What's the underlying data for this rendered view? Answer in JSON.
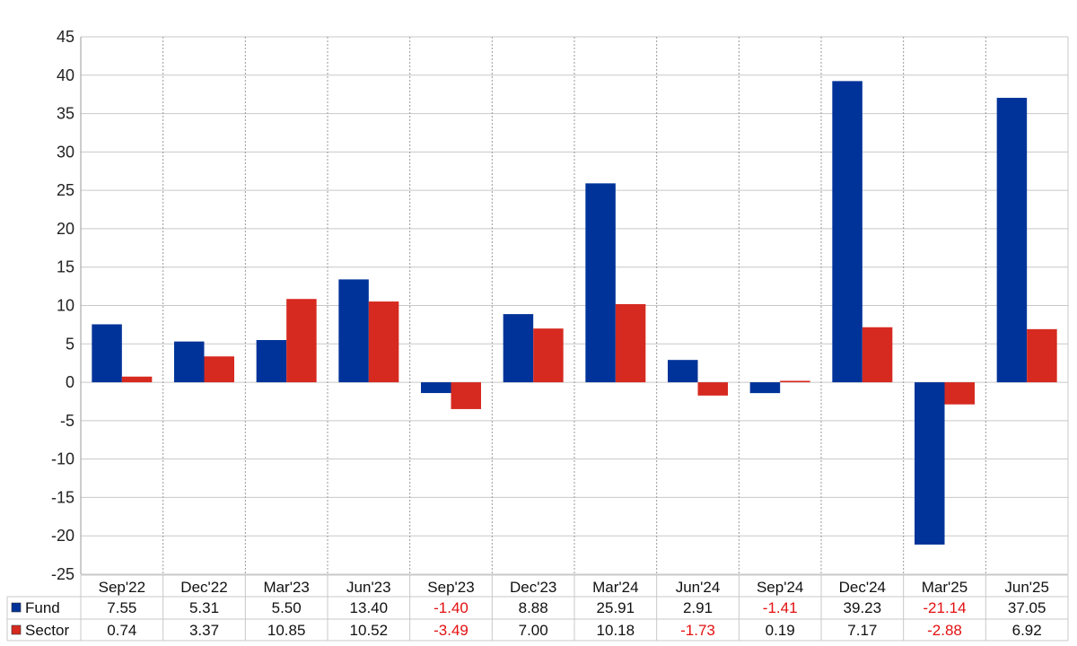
{
  "chart_data": {
    "type": "bar",
    "title": "",
    "xlabel": "",
    "ylabel": "",
    "ylim": [
      -25,
      45
    ],
    "yticks": [
      45,
      40,
      35,
      30,
      25,
      20,
      15,
      10,
      5,
      0,
      -5,
      -10,
      -15,
      -20,
      -25
    ],
    "categories": [
      "Sep'22",
      "Dec'22",
      "Mar'23",
      "Jun'23",
      "Sep'23",
      "Dec'23",
      "Mar'24",
      "Jun'24",
      "Sep'24",
      "Dec'24",
      "Mar'25",
      "Jun'25"
    ],
    "series": [
      {
        "name": "Fund",
        "color": "#003399",
        "values": [
          7.55,
          5.31,
          5.5,
          13.4,
          -1.4,
          8.88,
          25.91,
          2.91,
          -1.41,
          39.23,
          -21.14,
          37.05
        ],
        "labels": [
          "7.55",
          "5.31",
          "5.50",
          "13.40",
          "-1.40",
          "8.88",
          "25.91",
          "2.91",
          "-1.41",
          "39.23",
          "-21.14",
          "37.05"
        ]
      },
      {
        "name": "Sector",
        "color": "#d62a20",
        "values": [
          0.74,
          3.37,
          10.85,
          10.52,
          -3.49,
          7.0,
          10.18,
          -1.73,
          0.19,
          7.17,
          -2.88,
          6.92
        ],
        "labels": [
          "0.74",
          "3.37",
          "10.85",
          "10.52",
          "-3.49",
          "7.00",
          "10.18",
          "-1.73",
          "0.19",
          "7.17",
          "-2.88",
          "6.92"
        ]
      }
    ],
    "grid": true,
    "negative_color": "#e31010",
    "legend": "data-table-left"
  }
}
